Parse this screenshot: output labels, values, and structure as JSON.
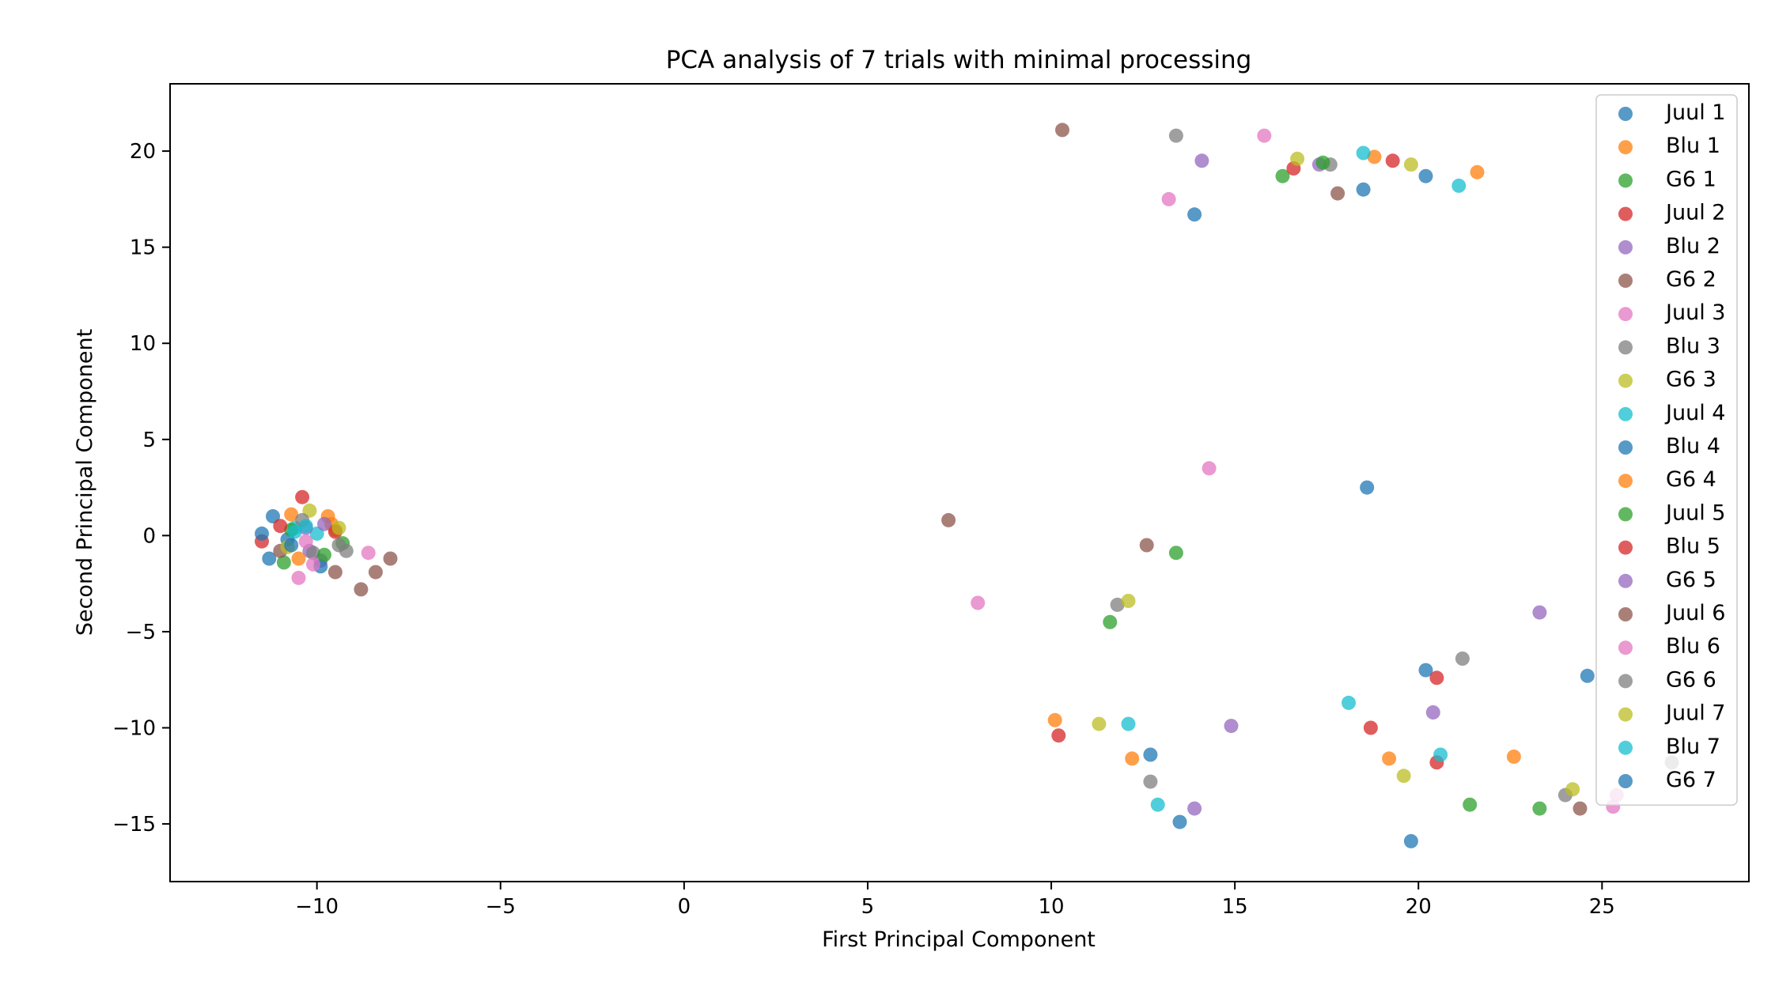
{
  "chart_data": {
    "type": "scatter",
    "title": "PCA analysis of 7 trials with minimal processing",
    "xlabel": "First Principal Component",
    "ylabel": "Second Principal Component",
    "xlim": [
      -14,
      29
    ],
    "ylim": [
      -18,
      23.5
    ],
    "xticks": [
      -10,
      -5,
      0,
      5,
      10,
      15,
      20,
      25
    ],
    "yticks": [
      -15,
      -10,
      -5,
      0,
      5,
      10,
      15,
      20
    ],
    "xtick_labels": [
      "−10",
      "−5",
      "0",
      "5",
      "10",
      "15",
      "20",
      "25"
    ],
    "ytick_labels": [
      "−15",
      "−10",
      "−5",
      "0",
      "5",
      "10",
      "15",
      "20"
    ],
    "grid": false,
    "legend_position": "top-right",
    "series": [
      {
        "name": "Juul 1",
        "color": "#1f77b4",
        "points": [
          [
            -11.2,
            1.0
          ],
          [
            -10.8,
            -0.2
          ],
          [
            13.9,
            16.7
          ],
          [
            20.2,
            -7.0
          ],
          [
            12.7,
            -11.4
          ]
        ]
      },
      {
        "name": "Blu 1",
        "color": "#ff7f0e",
        "points": [
          [
            -10.7,
            1.1
          ],
          [
            -9.7,
            1.0
          ],
          [
            18.8,
            19.7
          ],
          [
            22.6,
            -11.5
          ],
          [
            10.1,
            -9.6
          ]
        ]
      },
      {
        "name": "G6 1",
        "color": "#2ca02c",
        "points": [
          [
            -10.9,
            -1.4
          ],
          [
            -9.3,
            -0.4
          ],
          [
            16.3,
            18.7
          ],
          [
            13.4,
            -0.9
          ],
          [
            21.4,
            -14.0
          ]
        ]
      },
      {
        "name": "Juul 2",
        "color": "#d62728",
        "points": [
          [
            -10.4,
            2.0
          ],
          [
            -11.5,
            -0.3
          ],
          [
            16.6,
            19.1
          ],
          [
            19.3,
            19.5
          ],
          [
            20.5,
            -7.4
          ],
          [
            10.2,
            -10.4
          ]
        ]
      },
      {
        "name": "Blu 2",
        "color": "#9467bd",
        "points": [
          [
            -10.2,
            -0.8
          ],
          [
            -9.9,
            -1.3
          ],
          [
            14.1,
            19.5
          ],
          [
            17.3,
            19.3
          ],
          [
            23.3,
            -4.0
          ],
          [
            14.9,
            -9.9
          ]
        ]
      },
      {
        "name": "G6 2",
        "color": "#8c564b",
        "points": [
          [
            -9.5,
            -1.9
          ],
          [
            -8.8,
            -2.8
          ],
          [
            10.3,
            21.1
          ],
          [
            17.8,
            17.8
          ],
          [
            7.2,
            0.8
          ],
          [
            24.4,
            -14.2
          ]
        ]
      },
      {
        "name": "Juul 3",
        "color": "#e377c2",
        "points": [
          [
            -10.5,
            -2.2
          ],
          [
            -8.6,
            -0.9
          ],
          [
            15.8,
            20.8
          ],
          [
            13.2,
            17.5
          ],
          [
            14.3,
            3.5
          ],
          [
            8.0,
            -3.5
          ]
        ]
      },
      {
        "name": "Blu 3",
        "color": "#7f7f7f",
        "points": [
          [
            -9.4,
            -0.5
          ],
          [
            -10.1,
            -0.9
          ],
          [
            13.4,
            20.8
          ],
          [
            17.6,
            19.3
          ],
          [
            11.8,
            -3.6
          ],
          [
            12.7,
            -12.8
          ]
        ]
      },
      {
        "name": "G6 3",
        "color": "#bcbd22",
        "points": [
          [
            -10.2,
            1.3
          ],
          [
            -9.5,
            0.3
          ],
          [
            16.7,
            19.6
          ],
          [
            19.8,
            19.3
          ],
          [
            12.1,
            -3.4
          ],
          [
            19.6,
            -12.5
          ]
        ]
      },
      {
        "name": "Juul 4",
        "color": "#17becf",
        "points": [
          [
            -10.6,
            0.4
          ],
          [
            -10.0,
            0.1
          ],
          [
            18.5,
            19.9
          ],
          [
            21.1,
            18.2
          ],
          [
            18.1,
            -8.7
          ],
          [
            12.1,
            -9.8
          ]
        ]
      },
      {
        "name": "Blu 4",
        "color": "#1f77b4",
        "points": [
          [
            -11.3,
            -1.2
          ],
          [
            -9.9,
            -1.6
          ],
          [
            18.5,
            18.0
          ],
          [
            20.2,
            18.7
          ],
          [
            18.6,
            2.5
          ],
          [
            24.6,
            -7.3
          ]
        ]
      },
      {
        "name": "G6 4",
        "color": "#ff7f0e",
        "points": [
          [
            -10.5,
            -1.2
          ],
          [
            -9.6,
            0.6
          ],
          [
            21.6,
            18.9
          ],
          [
            19.2,
            -11.6
          ],
          [
            12.2,
            -11.6
          ]
        ]
      },
      {
        "name": "Juul 5",
        "color": "#2ca02c",
        "points": [
          [
            -9.8,
            -1.0
          ],
          [
            -10.7,
            0.3
          ],
          [
            17.4,
            19.4
          ],
          [
            11.6,
            -4.5
          ],
          [
            23.3,
            -14.2
          ]
        ]
      },
      {
        "name": "Blu 5",
        "color": "#d62728",
        "points": [
          [
            -9.5,
            0.2
          ],
          [
            -11.0,
            0.5
          ],
          [
            18.7,
            -10.0
          ],
          [
            20.5,
            -11.8
          ]
        ]
      },
      {
        "name": "G6 5",
        "color": "#9467bd",
        "points": [
          [
            -10.3,
            0.4
          ],
          [
            -9.8,
            0.6
          ],
          [
            20.4,
            -9.2
          ],
          [
            13.9,
            -14.2
          ]
        ]
      },
      {
        "name": "Juul 6",
        "color": "#8c564b",
        "points": [
          [
            -8.4,
            -1.9
          ],
          [
            -8.0,
            -1.2
          ],
          [
            12.6,
            -0.5
          ],
          [
            -11.0,
            -0.8
          ]
        ]
      },
      {
        "name": "Blu 6",
        "color": "#e377c2",
        "points": [
          [
            -10.1,
            -1.5
          ],
          [
            -10.3,
            -0.3
          ],
          [
            25.3,
            -14.1
          ],
          [
            25.4,
            -13.5
          ]
        ]
      },
      {
        "name": "G6 6",
        "color": "#7f7f7f",
        "points": [
          [
            -9.2,
            -0.8
          ],
          [
            -10.4,
            0.8
          ],
          [
            21.2,
            -6.4
          ],
          [
            24.0,
            -13.5
          ],
          [
            26.9,
            -11.8
          ]
        ]
      },
      {
        "name": "Juul 7",
        "color": "#bcbd22",
        "points": [
          [
            -10.8,
            -0.6
          ],
          [
            -9.4,
            0.4
          ],
          [
            11.3,
            -9.8
          ],
          [
            24.2,
            -13.2
          ]
        ]
      },
      {
        "name": "Blu 7",
        "color": "#17becf",
        "points": [
          [
            -10.6,
            0.2
          ],
          [
            -10.3,
            0.5
          ],
          [
            20.6,
            -11.4
          ],
          [
            12.9,
            -14.0
          ]
        ]
      },
      {
        "name": "G6 7",
        "color": "#1f77b4",
        "points": [
          [
            -11.5,
            0.1
          ],
          [
            -10.7,
            -0.5
          ],
          [
            13.5,
            -14.9
          ],
          [
            19.8,
            -15.9
          ]
        ]
      }
    ]
  }
}
